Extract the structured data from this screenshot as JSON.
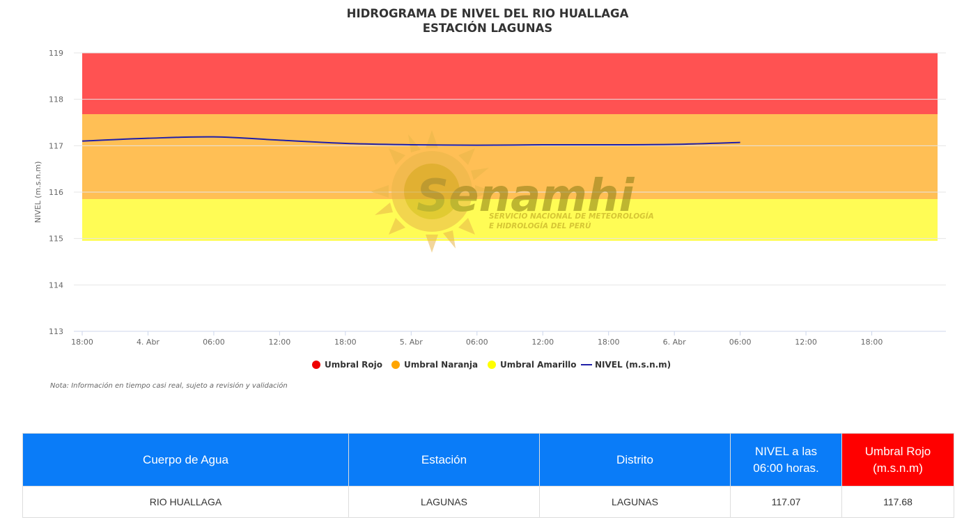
{
  "chart_data": {
    "type": "line",
    "title": "HIDROGRAMA DE NIVEL DEL RIO HUALLAGA",
    "subtitle": "ESTACIÓN LAGUNAS",
    "ylabel": "NIVEL (m.s.n.m)",
    "xlabel": "",
    "ylim": [
      113,
      119
    ],
    "yticks": [
      113,
      114,
      115,
      116,
      117,
      118,
      119
    ],
    "xlim_hours": [
      0,
      78
    ],
    "xticks": [
      {
        "hour": 0,
        "label": "18:00"
      },
      {
        "hour": 6,
        "label": "4. Abr"
      },
      {
        "hour": 12,
        "label": "06:00"
      },
      {
        "hour": 18,
        "label": "12:00"
      },
      {
        "hour": 24,
        "label": "18:00"
      },
      {
        "hour": 30,
        "label": "5. Abr"
      },
      {
        "hour": 36,
        "label": "06:00"
      },
      {
        "hour": 42,
        "label": "12:00"
      },
      {
        "hour": 48,
        "label": "18:00"
      },
      {
        "hour": 54,
        "label": "6. Abr"
      },
      {
        "hour": 60,
        "label": "06:00"
      },
      {
        "hour": 66,
        "label": "12:00"
      },
      {
        "hour": 72,
        "label": "18:00"
      }
    ],
    "bands": [
      {
        "name": "Umbral Rojo",
        "from": 117.68,
        "to": 119,
        "color": "#ff5252",
        "legend_color": "#ee0000"
      },
      {
        "name": "Umbral Naranja",
        "from": 115.85,
        "to": 117.68,
        "color": "#ffbf55",
        "legend_color": "#ffa500"
      },
      {
        "name": "Umbral Amarillo",
        "from": 114.95,
        "to": 115.85,
        "color": "#fffc55",
        "legend_color": "#ffff00"
      }
    ],
    "series": [
      {
        "name": "NIVEL (m.s.n.m)",
        "color": "#1f1fa8",
        "points": [
          [
            0,
            117.1
          ],
          [
            6,
            117.16
          ],
          [
            12,
            117.19
          ],
          [
            18,
            117.12
          ],
          [
            24,
            117.05
          ],
          [
            30,
            117.02
          ],
          [
            36,
            117.01
          ],
          [
            42,
            117.02
          ],
          [
            48,
            117.02
          ],
          [
            54,
            117.03
          ],
          [
            60,
            117.07
          ]
        ]
      }
    ],
    "grid": true,
    "legend_position": "bottom-center",
    "note": "Nota: Información en tiempo casi real, sujeto a revisión y validación"
  },
  "watermark": {
    "brand": "Senamhi",
    "line1": "SERVICIO NACIONAL DE METEOROLOGÍA",
    "line2": "E HIDROLOGÍA DEL PERÚ"
  },
  "table": {
    "headers": [
      "Cuerpo de Agua",
      "Estación",
      "Distrito",
      "NIVEL a las\n06:00 horas.",
      "Umbral Rojo\n(m.s.n.m)"
    ],
    "row": [
      "RIO HUALLAGA",
      "LAGUNAS",
      "LAGUNAS",
      "117.07",
      "117.68"
    ]
  }
}
